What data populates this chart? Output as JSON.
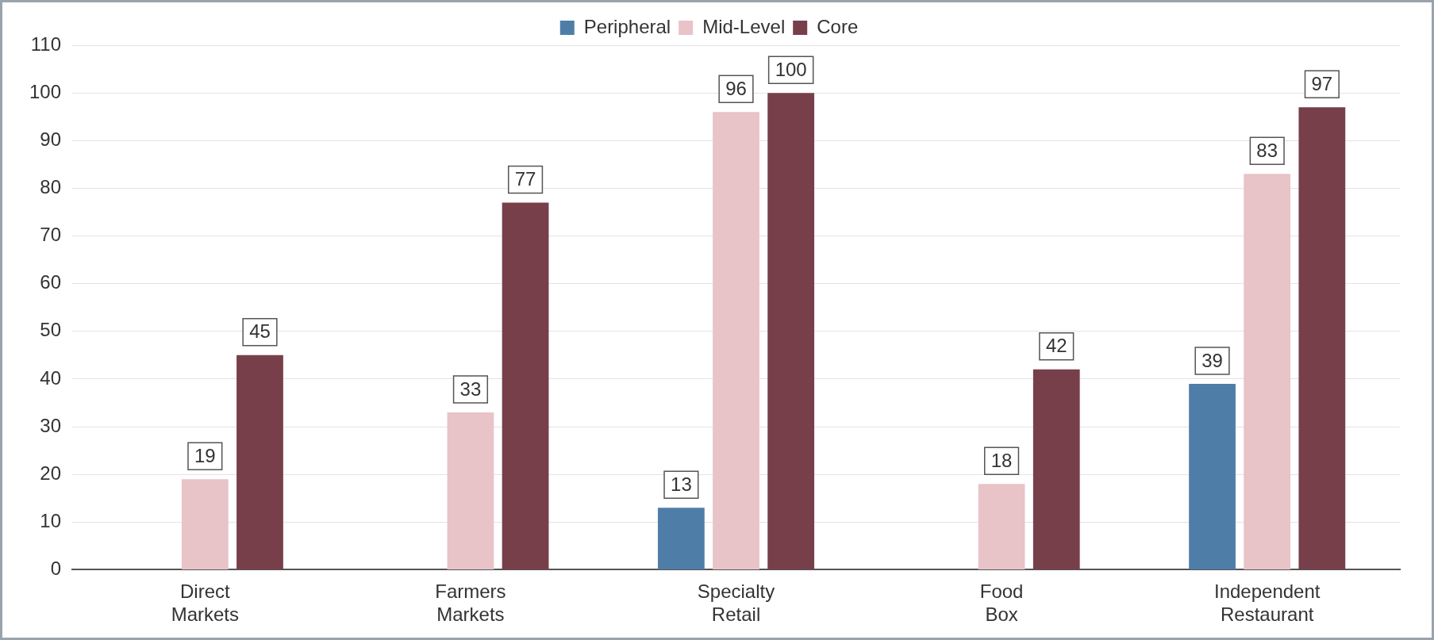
{
  "chart_data": {
    "type": "bar",
    "categories": [
      "Direct Markets",
      "Farmers Markets",
      "Specialty Retail",
      "Food Box",
      "Independent Restaurant"
    ],
    "series": [
      {
        "name": "Peripheral",
        "color": "#4e7ea8",
        "values": [
          null,
          null,
          13,
          null,
          39
        ]
      },
      {
        "name": "Mid-Level",
        "color": "#e8c3c8",
        "values": [
          19,
          33,
          96,
          18,
          83
        ]
      },
      {
        "name": "Core",
        "color": "#773f4a",
        "values": [
          45,
          77,
          100,
          42,
          97
        ]
      }
    ],
    "ylim": [
      0,
      110
    ],
    "yticks": [
      0,
      10,
      20,
      30,
      40,
      50,
      60,
      70,
      80,
      90,
      100,
      110
    ],
    "grid": "y",
    "legend": "top",
    "data_labels": true
  }
}
